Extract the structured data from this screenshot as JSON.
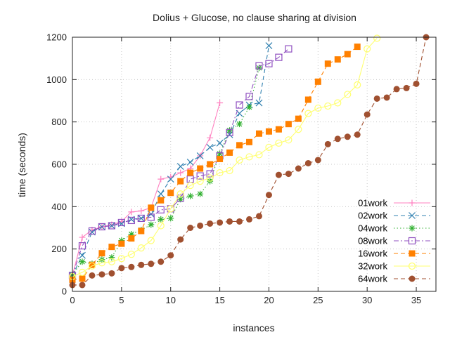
{
  "chart_data": {
    "type": "line",
    "title": "Dolius + Glucose, no clause sharing at division",
    "xlabel": "instances",
    "ylabel": "time (seconds)",
    "xlim": [
      0,
      37
    ],
    "ylim": [
      0,
      1200
    ],
    "xticks": [
      0,
      5,
      10,
      15,
      20,
      25,
      30,
      35
    ],
    "yticks": [
      0,
      200,
      400,
      600,
      800,
      1000,
      1200
    ],
    "grid": true,
    "legend_position": "bottom-right",
    "series": [
      {
        "name": "01work",
        "color": "#ff80c0",
        "marker": "plus",
        "dash": "solid",
        "x": [
          0,
          1,
          2,
          3,
          4,
          5,
          6,
          7,
          8,
          9,
          10,
          11,
          12,
          13,
          14,
          15
        ],
        "y": [
          75,
          255,
          290,
          305,
          315,
          330,
          375,
          380,
          395,
          530,
          540,
          560,
          580,
          640,
          725,
          890
        ]
      },
      {
        "name": "02work",
        "color": "#3080b0",
        "marker": "cross",
        "dash": "dashed",
        "x": [
          0,
          1,
          2,
          3,
          4,
          5,
          6,
          7,
          8,
          9,
          10,
          11,
          12,
          13,
          14,
          15,
          16,
          17,
          18,
          19,
          20
        ],
        "y": [
          75,
          170,
          280,
          305,
          310,
          320,
          340,
          345,
          365,
          460,
          530,
          590,
          610,
          640,
          680,
          700,
          740,
          840,
          880,
          890,
          1160
        ]
      },
      {
        "name": "04work",
        "color": "#30b030",
        "marker": "star",
        "dash": "dotted",
        "x": [
          0,
          1,
          2,
          3,
          4,
          5,
          6,
          7,
          8,
          9,
          10,
          11,
          12,
          13,
          14,
          15,
          16,
          17,
          18,
          19
        ],
        "y": [
          80,
          140,
          130,
          150,
          160,
          240,
          270,
          290,
          315,
          340,
          345,
          435,
          450,
          460,
          520,
          650,
          760,
          790,
          870,
          1055
        ]
      },
      {
        "name": "08work",
        "color": "#9050c0",
        "marker": "square-open",
        "dash": "dashdot",
        "x": [
          0,
          1,
          2,
          3,
          4,
          5,
          6,
          7,
          8,
          9,
          10,
          11,
          12,
          13,
          14,
          15,
          16,
          17,
          18,
          19,
          20,
          21,
          22
        ],
        "y": [
          75,
          215,
          285,
          305,
          310,
          325,
          335,
          345,
          350,
          385,
          390,
          440,
          530,
          545,
          555,
          640,
          750,
          880,
          920,
          1065,
          1075,
          1105,
          1145
        ]
      },
      {
        "name": "16work",
        "color": "#ff8000",
        "marker": "square-filled",
        "dash": "dashed",
        "x": [
          0,
          1,
          2,
          3,
          4,
          5,
          6,
          7,
          8,
          9,
          10,
          11,
          12,
          13,
          14,
          15,
          16,
          17,
          18,
          19,
          20,
          21,
          22,
          23,
          24,
          25,
          26,
          27,
          28,
          29
        ],
        "y": [
          55,
          60,
          125,
          180,
          210,
          225,
          250,
          285,
          395,
          430,
          465,
          520,
          560,
          580,
          600,
          625,
          655,
          690,
          705,
          745,
          755,
          765,
          790,
          815,
          905,
          990,
          1075,
          1095,
          1120,
          1155
        ]
      },
      {
        "name": "32work",
        "color": "#ffff70",
        "marker": "circle-open",
        "dash": "solid",
        "x": [
          0,
          1,
          2,
          3,
          4,
          5,
          6,
          7,
          8,
          9,
          10,
          11,
          12,
          13,
          14,
          15,
          16,
          17,
          18,
          19,
          20,
          21,
          22,
          23,
          24,
          25,
          26,
          27,
          28,
          29,
          30,
          31
        ],
        "y": [
          70,
          90,
          120,
          135,
          140,
          155,
          175,
          205,
          240,
          310,
          390,
          460,
          500,
          520,
          535,
          560,
          570,
          620,
          635,
          645,
          680,
          700,
          715,
          765,
          840,
          865,
          875,
          890,
          930,
          975,
          1145,
          1195
        ]
      },
      {
        "name": "64work",
        "color": "#a05030",
        "marker": "circle-filled",
        "dash": "dashed",
        "x": [
          0,
          1,
          2,
          3,
          4,
          5,
          6,
          7,
          8,
          9,
          10,
          11,
          12,
          13,
          14,
          15,
          16,
          17,
          18,
          19,
          20,
          21,
          22,
          23,
          24,
          25,
          26,
          27,
          28,
          29,
          30,
          31,
          32,
          33,
          34,
          35,
          36
        ],
        "y": [
          30,
          30,
          75,
          80,
          85,
          110,
          115,
          125,
          130,
          140,
          170,
          245,
          300,
          310,
          320,
          325,
          330,
          330,
          340,
          355,
          455,
          550,
          555,
          580,
          605,
          620,
          695,
          720,
          730,
          740,
          835,
          910,
          915,
          955,
          960,
          980,
          1200
        ]
      }
    ]
  }
}
